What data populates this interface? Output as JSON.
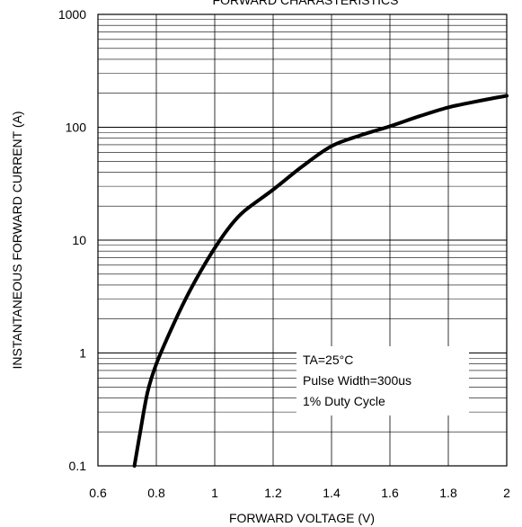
{
  "chart_data": {
    "type": "line",
    "title": "FORWARD CHARASTERISTICS",
    "xlabel": "FORWARD VOLTAGE (V)",
    "ylabel": "INSTANTANEOUS FORWARD CURRENT (A)",
    "x_scale": "linear",
    "y_scale": "log",
    "xlim": [
      0.6,
      2.0
    ],
    "ylim": [
      0.1,
      1000
    ],
    "x_ticks": [
      "0.6",
      "0.8",
      "1",
      "1.2",
      "1.4",
      "1.6",
      "1.8",
      "2"
    ],
    "y_ticks": [
      "0.1",
      "1",
      "10",
      "100",
      "1000"
    ],
    "grid": true,
    "series": [
      {
        "color": "#000000",
        "x": [
          0.725,
          0.745,
          0.77,
          0.8,
          0.85,
          0.9,
          0.95,
          1.0,
          1.05,
          1.1,
          1.2,
          1.3,
          1.4,
          1.5,
          1.6,
          1.7,
          1.8,
          1.9,
          2.0
        ],
        "y": [
          0.1,
          0.2,
          0.45,
          0.8,
          1.6,
          3.0,
          5.2,
          8.5,
          13,
          18,
          28,
          45,
          68,
          85,
          102,
          125,
          150,
          170,
          190
        ]
      }
    ],
    "annotations": [
      "TA=25°C",
      "Pulse Width=300us",
      "1% Duty Cycle"
    ]
  }
}
